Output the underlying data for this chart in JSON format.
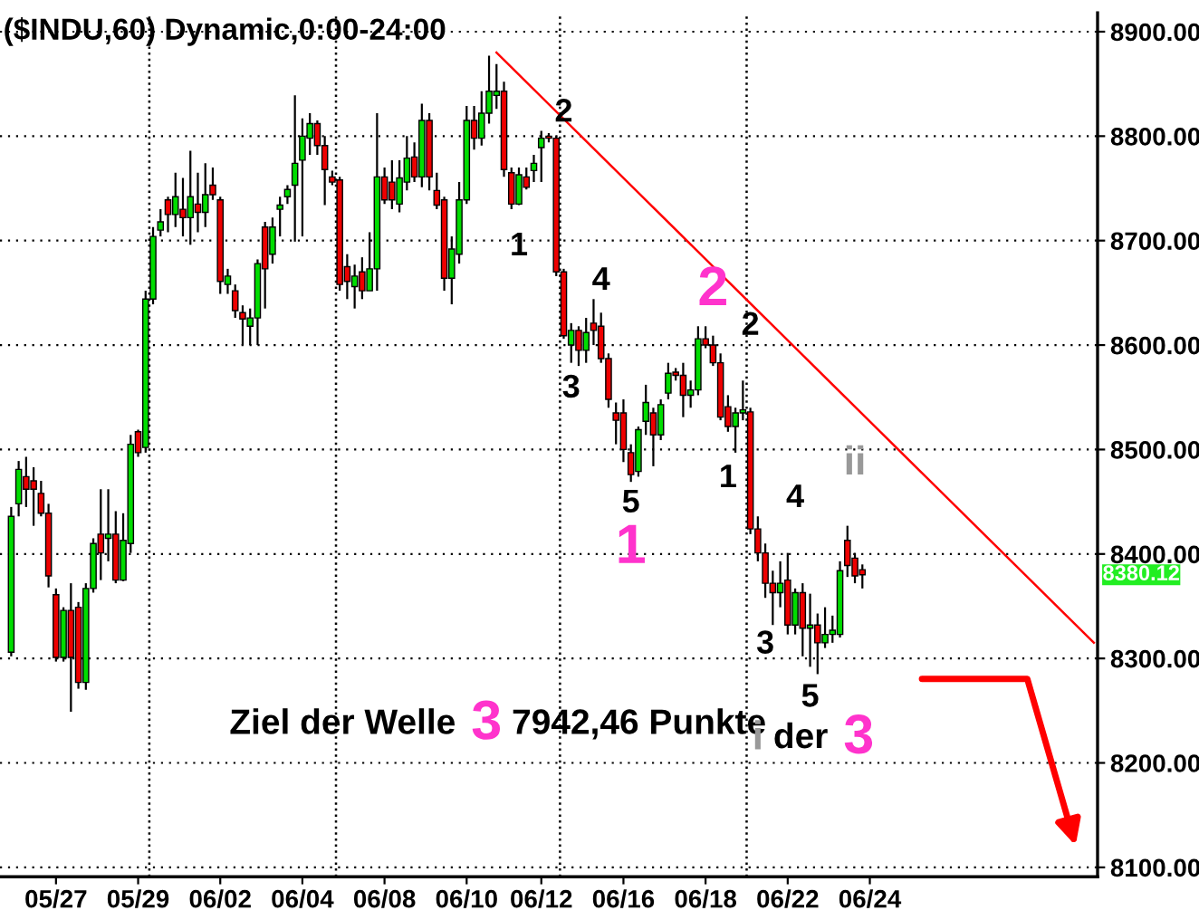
{
  "chart_data": {
    "type": "candlestick",
    "title": "($INDU,60) Dynamic,0:00-24:00",
    "categories": [
      null,
      null,
      null,
      null,
      null,
      null,
      "05/27",
      null,
      null,
      null,
      null,
      null,
      null,
      null,
      null,
      null,
      null,
      "05/29",
      null,
      null,
      null,
      null,
      null,
      null,
      null,
      null,
      null,
      null,
      "06/02",
      null,
      null,
      null,
      null,
      null,
      null,
      null,
      null,
      null,
      null,
      "06/04",
      null,
      null,
      null,
      null,
      null,
      null,
      null,
      null,
      null,
      null,
      "06/08",
      null,
      null,
      null,
      null,
      null,
      null,
      null,
      null,
      null,
      null,
      "06/10",
      null,
      null,
      null,
      null,
      null,
      null,
      null,
      null,
      null,
      "06/12",
      null,
      null,
      null,
      null,
      null,
      null,
      null,
      null,
      null,
      null,
      "06/16",
      null,
      null,
      null,
      null,
      null,
      null,
      null,
      null,
      null,
      null,
      "06/18",
      null,
      null,
      null,
      null,
      null,
      null,
      null,
      null,
      null,
      null,
      "06/22",
      null,
      null,
      null,
      null,
      null,
      null,
      null,
      null,
      null,
      null,
      "06/24",
      null,
      null,
      null,
      null,
      null,
      null,
      null,
      null,
      null,
      null,
      null,
      null,
      null,
      null,
      null,
      null,
      null,
      null,
      null,
      null,
      null,
      null,
      null,
      null,
      null,
      null,
      null,
      null,
      null,
      null
    ],
    "ohlc": [
      [
        8306,
        8445,
        8302,
        8436
      ],
      [
        8448,
        8489,
        8436,
        8481
      ],
      [
        8474,
        8493,
        8445,
        8462
      ],
      [
        8470,
        8483,
        8427,
        8462
      ],
      [
        8458,
        8470,
        8436,
        8439
      ],
      [
        8439,
        8448,
        8368,
        8379
      ],
      [
        8361,
        8367,
        8297,
        8301
      ],
      [
        8301,
        8349,
        8297,
        8346
      ],
      [
        8346,
        8372,
        8249,
        8301
      ],
      [
        8349,
        8354,
        8271,
        8277
      ],
      [
        8277,
        8372,
        8270,
        8367
      ],
      [
        8367,
        8415,
        8363,
        8410
      ],
      [
        8419,
        8462,
        8375,
        8401
      ],
      [
        8415,
        8462,
        8393,
        8419
      ],
      [
        8419,
        8441,
        8372,
        8375
      ],
      [
        8375,
        8439,
        8374,
        8413
      ],
      [
        8410,
        8514,
        8401,
        8505
      ],
      [
        8517,
        8519,
        8493,
        8497
      ],
      [
        8502,
        8652,
        8497,
        8644
      ],
      [
        8644,
        8713,
        8639,
        8704
      ],
      [
        8710,
        8730,
        8704,
        8718
      ],
      [
        8739,
        8742,
        8708,
        8725
      ],
      [
        8725,
        8765,
        8713,
        8742
      ],
      [
        8730,
        8760,
        8704,
        8722
      ],
      [
        8722,
        8786,
        8696,
        8742
      ],
      [
        8735,
        8765,
        8708,
        8727
      ],
      [
        8727,
        8774,
        8713,
        8744
      ],
      [
        8753,
        8770,
        8739,
        8744
      ],
      [
        8739,
        8742,
        8649,
        8661
      ],
      [
        8658,
        8673,
        8649,
        8666
      ],
      [
        8652,
        8658,
        8626,
        8633
      ],
      [
        8631,
        8638,
        8600,
        8625
      ],
      [
        8618,
        8635,
        8600,
        8626
      ],
      [
        8626,
        8682,
        8600,
        8678
      ],
      [
        8713,
        8718,
        8635,
        8673
      ],
      [
        8687,
        8722,
        8678,
        8713
      ],
      [
        8730,
        8742,
        8704,
        8734
      ],
      [
        8742,
        8753,
        8735,
        8749
      ],
      [
        8753,
        8839,
        8699,
        8774
      ],
      [
        8777,
        8817,
        8704,
        8800
      ],
      [
        8798,
        8822,
        8782,
        8812
      ],
      [
        8812,
        8815,
        8782,
        8791
      ],
      [
        8791,
        8800,
        8734,
        8768
      ],
      [
        8761,
        8767,
        8753,
        8756
      ],
      [
        8758,
        8761,
        8652,
        8658
      ],
      [
        8675,
        8687,
        8644,
        8661
      ],
      [
        8656,
        8677,
        8635,
        8666
      ],
      [
        8670,
        8684,
        8644,
        8652
      ],
      [
        8652,
        8708,
        8652,
        8673
      ],
      [
        8673,
        8822,
        8652,
        8761
      ],
      [
        8761,
        8770,
        8735,
        8739
      ],
      [
        8756,
        8777,
        8730,
        8739
      ],
      [
        8735,
        8777,
        8727,
        8760
      ],
      [
        8756,
        8800,
        8748,
        8779
      ],
      [
        8780,
        8794,
        8756,
        8761
      ],
      [
        8761,
        8831,
        8751,
        8815
      ],
      [
        8815,
        8822,
        8748,
        8761
      ],
      [
        8748,
        8765,
        8730,
        8734
      ],
      [
        8739,
        8742,
        8652,
        8664
      ],
      [
        8664,
        8704,
        8639,
        8692
      ],
      [
        8687,
        8756,
        8678,
        8739
      ],
      [
        8739,
        8829,
        8735,
        8815
      ],
      [
        8815,
        8829,
        8787,
        8798
      ],
      [
        8798,
        8843,
        8791,
        8822
      ],
      [
        8822,
        8877,
        8812,
        8843
      ],
      [
        8839,
        8869,
        8826,
        8843
      ],
      [
        8843,
        8852,
        8761,
        8768
      ],
      [
        8765,
        8770,
        8730,
        8735
      ],
      [
        8735,
        8770,
        8734,
        8763
      ],
      [
        8761,
        8770,
        8749,
        8751
      ],
      [
        8767,
        8782,
        8756,
        8774
      ],
      [
        8789,
        8805,
        8756,
        8798
      ],
      [
        8800,
        8803,
        8794,
        8798
      ],
      [
        8798,
        8800,
        8666,
        8670
      ],
      [
        8670,
        8673,
        8606,
        8609
      ],
      [
        8600,
        8621,
        8583,
        8614
      ],
      [
        8614,
        8618,
        8580,
        8595
      ],
      [
        8595,
        8626,
        8583,
        8612
      ],
      [
        8621,
        8644,
        8600,
        8614
      ],
      [
        8618,
        8631,
        8583,
        8587
      ],
      [
        8587,
        8592,
        8540,
        8548
      ],
      [
        8535,
        8545,
        8505,
        8528
      ],
      [
        8535,
        8548,
        8488,
        8500
      ],
      [
        8497,
        8505,
        8469,
        8476
      ],
      [
        8479,
        8522,
        8474,
        8519
      ],
      [
        8527,
        8562,
        8514,
        8545
      ],
      [
        8535,
        8540,
        8484,
        8514
      ],
      [
        8514,
        8548,
        8509,
        8543
      ],
      [
        8554,
        8583,
        8548,
        8573
      ],
      [
        8574,
        8578,
        8566,
        8571
      ],
      [
        8571,
        8583,
        8531,
        8552
      ],
      [
        8552,
        8566,
        8540,
        8557
      ],
      [
        8557,
        8618,
        8552,
        8606
      ],
      [
        8606,
        8618,
        8597,
        8600
      ],
      [
        8600,
        8609,
        8580,
        8583
      ],
      [
        8583,
        8592,
        8528,
        8531
      ],
      [
        8541,
        8552,
        8517,
        8522
      ],
      [
        8522,
        8540,
        8497,
        8535
      ],
      [
        8535,
        8566,
        8528,
        8538
      ],
      [
        8536,
        8540,
        8419,
        8424
      ],
      [
        8424,
        8436,
        8393,
        8401
      ],
      [
        8401,
        8410,
        8358,
        8372
      ],
      [
        8372,
        8384,
        8332,
        8363
      ],
      [
        8363,
        8393,
        8349,
        8372
      ],
      [
        8375,
        8401,
        8323,
        8332
      ],
      [
        8332,
        8367,
        8323,
        8363
      ],
      [
        8363,
        8372,
        8302,
        8329
      ],
      [
        8329,
        8362,
        8292,
        8332
      ],
      [
        8332,
        8343,
        8285,
        8315
      ],
      [
        8315,
        8349,
        8310,
        8323
      ],
      [
        8323,
        8341,
        8315,
        8327
      ],
      [
        8323,
        8393,
        8320,
        8384
      ],
      [
        8413,
        8427,
        8378,
        8389
      ],
      [
        8396,
        8401,
        8372,
        8379
      ],
      [
        8385,
        8390,
        8367,
        8380.12
      ],
      null,
      null,
      null,
      null,
      null,
      null,
      null,
      null,
      null,
      null,
      null,
      null,
      null,
      null,
      null,
      null,
      null,
      null,
      null,
      null,
      null,
      null,
      null,
      null,
      null,
      null,
      null,
      null,
      null,
      null,
      null
    ],
    "series": [
      {
        "type": "line",
        "color": "#ff0000",
        "values": [
          null,
          null,
          null,
          null,
          null,
          null,
          null,
          null,
          null,
          null,
          null,
          null,
          null,
          null,
          null,
          null,
          null,
          null,
          null,
          null,
          null,
          null,
          null,
          null,
          null,
          null,
          null,
          null,
          null,
          null,
          null,
          null,
          null,
          null,
          null,
          null,
          null,
          null,
          null,
          null,
          null,
          null,
          null,
          null,
          null,
          null,
          null,
          null,
          null,
          null,
          null,
          null,
          null,
          null,
          null,
          null,
          null,
          null,
          null,
          null,
          null,
          null,
          null,
          null,
          null,
          8880,
          null,
          null,
          null,
          null,
          null,
          null,
          null,
          null,
          null,
          null,
          null,
          null,
          null,
          null,
          null,
          null,
          null,
          null,
          null,
          null,
          null,
          null,
          null,
          null,
          null,
          null,
          null,
          null,
          null,
          null,
          null,
          null,
          null,
          null,
          null,
          null,
          null,
          null,
          null,
          null,
          null,
          null,
          null,
          null,
          null,
          null,
          null,
          null,
          null,
          null,
          null,
          null,
          null,
          null,
          null,
          null,
          null,
          null,
          null,
          null,
          null,
          null,
          null,
          null,
          null,
          null,
          null,
          null,
          null,
          null,
          null,
          null,
          null,
          null,
          null,
          null,
          null,
          null,
          null,
          8315
        ]
      }
    ],
    "ylim": [
      8091,
      8918
    ],
    "yticks": [
      {
        "value": 8100,
        "label": "8100.00"
      },
      {
        "value": 8200,
        "label": "8200.00"
      },
      {
        "value": 8300,
        "label": "8300.00"
      },
      {
        "value": 8400,
        "label": "8400.00"
      },
      {
        "value": 8500,
        "label": "8500.00"
      },
      {
        "value": 8600,
        "label": "8600.00"
      },
      {
        "value": 8700,
        "label": "8700.00"
      },
      {
        "value": 8800,
        "label": "8800.00"
      },
      {
        "value": 8900,
        "label": "8900.00"
      }
    ],
    "grid": "y",
    "annotations": [
      "Ziel der Welle",
      "3",
      "7942,46 Punkte",
      "2",
      "1",
      "4",
      "3",
      "5",
      "1",
      "2",
      "2",
      "1",
      "4",
      "3",
      "5",
      "ii",
      "i",
      "der",
      "3",
      "8380.12"
    ]
  }
}
